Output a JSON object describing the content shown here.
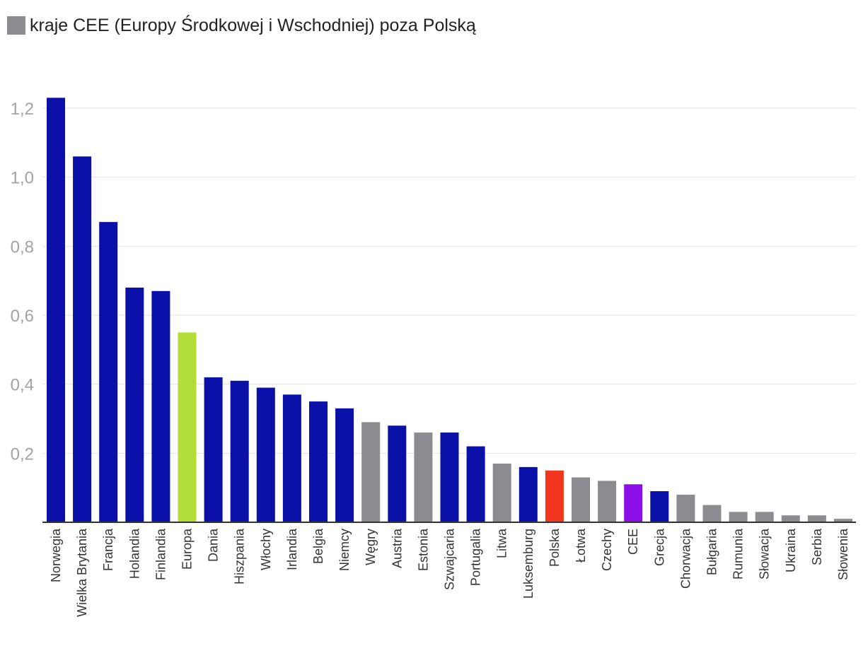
{
  "legend": {
    "label": "kraje CEE (Europy Środkowej i Wschodniej) poza Polską",
    "color": "#8c8c90"
  },
  "colors": {
    "europe_west": "#0a10a8",
    "cee": "#8c8c90",
    "europa": "#b2de37",
    "polska": "#f0361f",
    "cee_avg": "#8b0ee6",
    "grid": "#e2e2e2",
    "axis": "#333333"
  },
  "chart_data": {
    "type": "bar",
    "categories": [
      "Norwegia",
      "Wielka Brytania",
      "Francja",
      "Holandia",
      "Finlandia",
      "Europa",
      "Dania",
      "Hiszpania",
      "Włochy",
      "Irlandia",
      "Belgia",
      "Niemcy",
      "Węgry",
      "Austria",
      "Estonia",
      "Szwajcaria",
      "Portugalia",
      "Litwa",
      "Luksemburg",
      "Polska",
      "Łotwa",
      "Czechy",
      "CEE",
      "Grecja",
      "Chorwacja",
      "Bułgaria",
      "Rumunia",
      "Słowacja",
      "Ukraina",
      "Serbia",
      "Słowenia"
    ],
    "values": [
      1.23,
      1.06,
      0.87,
      0.68,
      0.67,
      0.55,
      0.42,
      0.41,
      0.39,
      0.37,
      0.35,
      0.33,
      0.29,
      0.28,
      0.26,
      0.26,
      0.22,
      0.17,
      0.16,
      0.15,
      0.13,
      0.12,
      0.11,
      0.09,
      0.08,
      0.05,
      0.03,
      0.03,
      0.02,
      0.02,
      0.01
    ],
    "groups": [
      "europe_west",
      "europe_west",
      "europe_west",
      "europe_west",
      "europe_west",
      "europa",
      "europe_west",
      "europe_west",
      "europe_west",
      "europe_west",
      "europe_west",
      "europe_west",
      "cee",
      "europe_west",
      "cee",
      "europe_west",
      "europe_west",
      "cee",
      "europe_west",
      "polska",
      "cee",
      "cee",
      "cee_avg",
      "europe_west",
      "cee",
      "cee",
      "cee",
      "cee",
      "cee",
      "cee",
      "cee"
    ],
    "yticks": [
      "0,2",
      "0,4",
      "0,6",
      "0,8",
      "1,0",
      "1,2"
    ],
    "ytick_values": [
      0.2,
      0.4,
      0.6,
      0.8,
      1.0,
      1.2
    ],
    "ylim": [
      0,
      1.25
    ],
    "grid": true,
    "legend_position": "top-left"
  }
}
